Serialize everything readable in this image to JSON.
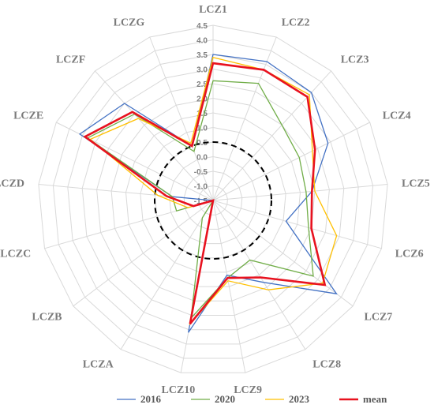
{
  "chart_data": {
    "type": "radar",
    "axes": [
      "LCZ1",
      "LCZ2",
      "LCZ3",
      "LCZ4",
      "LCZ5",
      "LCZ6",
      "LCZ7",
      "LCZ8",
      "LCZ9",
      "LCZ10",
      "LCZA",
      "LCZB",
      "LCZC",
      "LCZD",
      "LCZE",
      "LCZF",
      "LCZG"
    ],
    "r_range": [
      -1.5,
      4.5
    ],
    "r_ticks": [
      "-1.5",
      "-1.0",
      "-0.5",
      "0.0",
      "0.5",
      "1.0",
      "1.5",
      "2.0",
      "2.5",
      "3.0",
      "3.5",
      "4.0",
      "4.5"
    ],
    "r_tick_values": [
      -1.5,
      -1.0,
      -0.5,
      0.0,
      0.5,
      1.0,
      1.5,
      2.0,
      2.5,
      3.0,
      3.5,
      4.0,
      4.5
    ],
    "reference_circle_value": 0.5,
    "grid": true,
    "legend_position": "bottom",
    "series": [
      {
        "name": "2016",
        "color": "#4472c4",
        "width": 1.3,
        "values": [
          3.5,
          3.6,
          3.5,
          2.9,
          1.9,
          1.1,
          3.8,
          1.8,
          1.1,
          3.1,
          -1.5,
          -1.5,
          -1.5,
          -0.1,
          3.6,
          3.0,
          0.5
        ]
      },
      {
        "name": "2020",
        "color": "#70ad47",
        "width": 1.3,
        "values": [
          2.6,
          2.8,
          2.0,
          1.8,
          1.7,
          1.9,
          2.8,
          0.9,
          1.2,
          2.6,
          -0.8,
          -1.5,
          -0.2,
          -0.1,
          3.3,
          2.5,
          0.3
        ]
      },
      {
        "name": "2023",
        "color": "#ffc000",
        "width": 1.3,
        "values": [
          3.4,
          3.3,
          3.4,
          2.3,
          2.0,
          2.9,
          3.2,
          2.1,
          1.3,
          2.8,
          -1.5,
          -1.5,
          -0.6,
          0.4,
          3.2,
          2.3,
          0.6
        ]
      },
      {
        "name": "mean",
        "color": "#e8121f",
        "width": 2.6,
        "values": [
          3.2,
          3.3,
          3.3,
          2.4,
          1.9,
          2.0,
          3.3,
          1.6,
          1.2,
          2.8,
          -1.5,
          -1.5,
          -0.8,
          0.1,
          3.4,
          2.6,
          0.5
        ]
      }
    ]
  }
}
